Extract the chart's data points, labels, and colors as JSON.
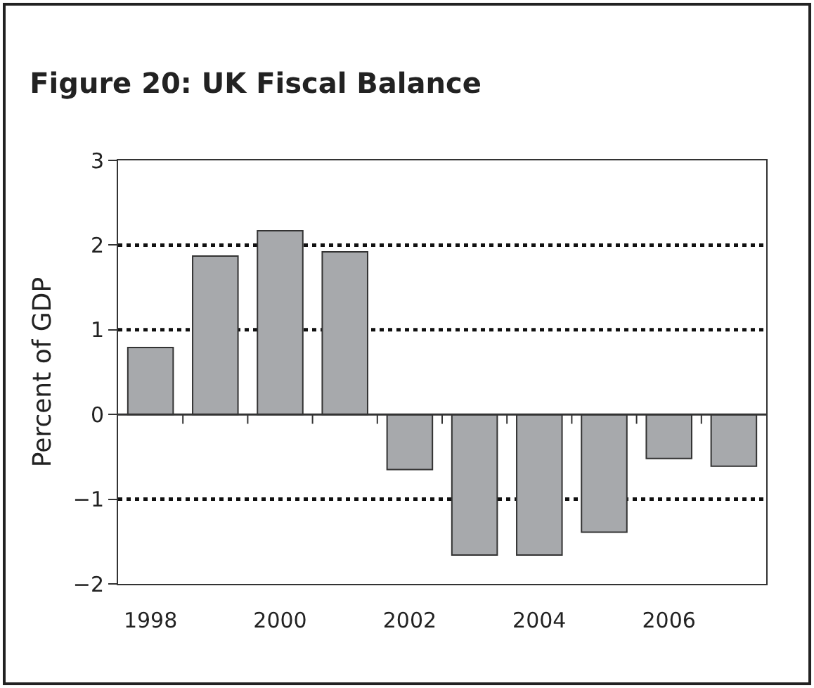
{
  "chart_data": {
    "type": "bar",
    "title": "Figure 20: UK Fiscal Balance",
    "ylabel": "Percent of GDP",
    "categories": [
      "1998",
      null,
      "2000",
      null,
      "2002",
      null,
      "2004",
      null,
      "2006",
      null
    ],
    "values": [
      0.79,
      1.87,
      2.17,
      1.92,
      -0.65,
      -1.66,
      -1.66,
      -1.39,
      -0.52,
      -0.61
    ],
    "color": "#a7a9ac",
    "ylim": [
      -2,
      3
    ],
    "yticks": [
      {
        "value": -2,
        "label": "−2"
      },
      {
        "value": -1,
        "label": "−1"
      },
      0,
      1,
      2,
      3
    ],
    "grid": "y"
  }
}
